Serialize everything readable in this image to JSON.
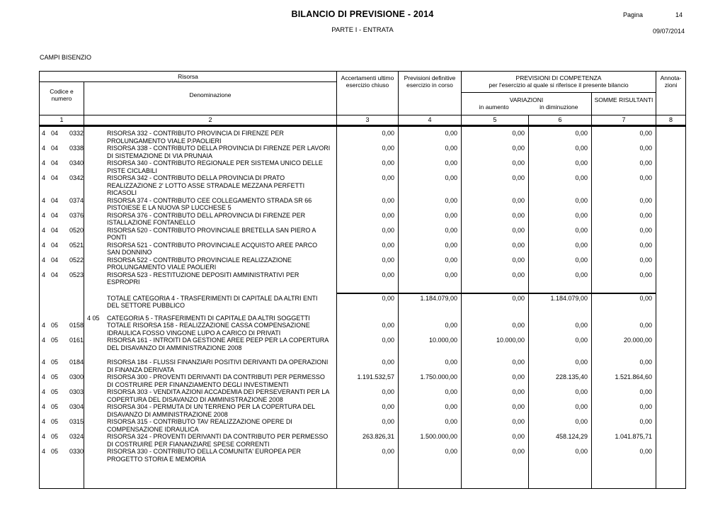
{
  "page": {
    "title": "BILANCIO DI PREVISIONE - 2014",
    "subtitle": "PARTE I - ENTRATA",
    "page_label": "Pagina",
    "page_number": "14",
    "date": "09/07/2014",
    "entity": "CAMPI BISENZIO"
  },
  "colors": {
    "text": "#000000",
    "border": "#000000",
    "background": "#ffffff"
  },
  "table": {
    "header": {
      "risorsa": "Risorsa",
      "codice": "Codice e numero",
      "denominazione": "Denominazione",
      "accertamenti": "Accertamenti ultimo esercizio chiuso",
      "previsioni": "Previsioni definitive esercizio in corso",
      "competenza_title": "PREVISIONI DI COMPETENZA",
      "competenza_sub": "per l'esercizio al quale si riferisce il presente bilancio",
      "variazioni": "VARIAZIONI",
      "in_aumento": "in aumento",
      "in_diminuzione": "in diminuzione",
      "somme": "SOMME RISULTANTI",
      "annotazioni": "Annota-zioni",
      "col_numbers": [
        "1",
        "2",
        "3",
        "4",
        "5",
        "6",
        "7",
        "8"
      ]
    },
    "rows": [
      {
        "type": "item",
        "c1": "4",
        "c2": "04",
        "c3": "0332",
        "den": "RISORSA 332 - CONTRIBUTO PROVINCIA DI FIRENZE PER PROLUNGAMENTO VIALE P.PAOLIERI",
        "v": [
          "0,00",
          "0,00",
          "0,00",
          "0,00",
          "0,00"
        ],
        "ann": ""
      },
      {
        "type": "item",
        "c1": "4",
        "c2": "04",
        "c3": "0338",
        "den": "RISORSA 338 - CONTRIBUTO DELLA PROVINCIA DI FIRENZE PER LAVORI DI SISTEMAZIONE DI VIA PRUNAIA",
        "v": [
          "0,00",
          "0,00",
          "0,00",
          "0,00",
          "0,00"
        ],
        "ann": ""
      },
      {
        "type": "item",
        "c1": "4",
        "c2": "04",
        "c3": "0340",
        "den": "RISORSA 340 - CONTRIBUTO REGIONALE PER SISTEMA UNICO DELLE PISTE CICLABILI",
        "v": [
          "0,00",
          "0,00",
          "0,00",
          "0,00",
          "0,00"
        ],
        "ann": ""
      },
      {
        "type": "item",
        "c1": "4",
        "c2": "04",
        "c3": "0342",
        "den": "RISORSA 342 - CONTRIBUTO DELLA PROVINCIA DI PRATO REALIZZAZIONE 2' LOTTO ASSE STRADALE MEZZANA PERFETTI RICASOLI",
        "v": [
          "0,00",
          "0,00",
          "0,00",
          "0,00",
          "0,00"
        ],
        "ann": ""
      },
      {
        "type": "item",
        "c1": "4",
        "c2": "04",
        "c3": "0374",
        "den": "RISORSA 374 - CONTRIBUTO CEE COLLEGAMENTO STRADA SR 66 PISTOIESE E LA NUOVA SP LUCCHESE 5",
        "v": [
          "0,00",
          "0,00",
          "0,00",
          "0,00",
          "0,00"
        ],
        "ann": ""
      },
      {
        "type": "item",
        "c1": "4",
        "c2": "04",
        "c3": "0376",
        "den": "RISORSA 376 - CONTRIBUTO DELL APROVINCIA DI FIRENZE PER ISTALLAZIONE FONTANELLO",
        "v": [
          "0,00",
          "0,00",
          "0,00",
          "0,00",
          "0,00"
        ],
        "ann": ""
      },
      {
        "type": "item",
        "c1": "4",
        "c2": "04",
        "c3": "0520",
        "den": "RISORSA 520 - CONTRIBUTO PROVINCIALE BRETELLA SAN PIERO A PONTI",
        "v": [
          "0,00",
          "0,00",
          "0,00",
          "0,00",
          "0,00"
        ],
        "ann": ""
      },
      {
        "type": "item",
        "c1": "4",
        "c2": "04",
        "c3": "0521",
        "den": "RISORSA 521 - CONTRIBUTO PROVINCIALE ACQUISTO AREE PARCO SAN DONNINO",
        "v": [
          "0,00",
          "0,00",
          "0,00",
          "0,00",
          "0,00"
        ],
        "ann": ""
      },
      {
        "type": "item",
        "c1": "4",
        "c2": "04",
        "c3": "0522",
        "den": "RISORSA 522 - CONTRIBUTO PROVINCIALE REALIZZAZIONE PROLUNGAMENTO VIALE PAOLIERI",
        "v": [
          "0,00",
          "0,00",
          "0,00",
          "0,00",
          "0,00"
        ],
        "ann": ""
      },
      {
        "type": "item",
        "c1": "4",
        "c2": "04",
        "c3": "0523",
        "den": "RISORSA 523 - RESTITUZIONE DEPOSITI AMMINISTRATIVI PER ESPROPRI",
        "v": [
          "0,00",
          "0,00",
          "0,00",
          "0,00",
          "0,00"
        ],
        "ann": ""
      },
      {
        "type": "total",
        "den": "TOTALE CATEGORIA 4 - TRASFERIMENTI DI CAPITALE DA ALTRI ENTI DEL SETTORE PUBBLICO",
        "v": [
          "0,00",
          "1.184.079,00",
          "0,00",
          "1.184.079,00",
          "0,00"
        ],
        "ann": ""
      },
      {
        "type": "category",
        "cat": "4  05",
        "den": "CATEGORIA 5 - TRASFERIMENTI DI CAPITALE DA ALTRI SOGGETTI",
        "v": [
          "",
          "",
          "",
          "",
          ""
        ],
        "ann": ""
      },
      {
        "type": "item",
        "c1": "4",
        "c2": "05",
        "c3": "0158",
        "den": "TOTALE RISORSA 158 - REALIZZAZIONE CASSA COMPENSAZIONE IDRAULICA FOSSO VINGONE LUPO A CARICO DI PRIVATI",
        "v": [
          "0,00",
          "0,00",
          "0,00",
          "0,00",
          "0,00"
        ],
        "ann": ""
      },
      {
        "type": "item",
        "c1": "4",
        "c2": "05",
        "c3": "0161",
        "den": "RISORSA 161 - INTROITI DA GESTIONE AREE PEEP PER LA COPERTURA DEL DISAVANZO DI AMMINISTRAZIONE 2008",
        "v": [
          "0,00",
          "10.000,00",
          "10.000,00",
          "0,00",
          "20.000,00"
        ],
        "ann": ""
      },
      {
        "type": "spacer",
        "h": 10
      },
      {
        "type": "item",
        "c1": "4",
        "c2": "05",
        "c3": "0184",
        "den": "RISORSA 184 - FLUSSI FINANZIARI POSITIVI DERIVANTI DA OPERAZIONI DI FINANZA DERIVATA",
        "v": [
          "0,00",
          "0,00",
          "0,00",
          "0,00",
          "0,00"
        ],
        "ann": ""
      },
      {
        "type": "item",
        "c1": "4",
        "c2": "05",
        "c3": "0300",
        "den": "RISORSA 300 - PROVENTI DERIVANTI DA CONTRIBUTI PER PERMESSO DI COSTRUIRE PER FINANZIAMENTO DEGLI INVESTIMENTI",
        "v": [
          "1.191.532,57",
          "1.750.000,00",
          "0,00",
          "228.135,40",
          "1.521.864,60"
        ],
        "ann": ""
      },
      {
        "type": "item",
        "c1": "4",
        "c2": "05",
        "c3": "0303",
        "den": "RISORSA 303 - VENDITA AZIONI ACCADEMIA DEI PERSEVERANTI PER LA COPERTURA DEL DISAVANZO DI AMMINISTRAZIONE 2008",
        "v": [
          "0,00",
          "0,00",
          "0,00",
          "0,00",
          "0,00"
        ],
        "ann": ""
      },
      {
        "type": "item",
        "c1": "4",
        "c2": "05",
        "c3": "0304",
        "den": "RISORSA 304 - PERMUTA DI UN TERRENO PER LA COPERTURA DEL DISAVANZO DI AMMINISTRAZIONE 2008",
        "v": [
          "0,00",
          "0,00",
          "0,00",
          "0,00",
          "0,00"
        ],
        "ann": ""
      },
      {
        "type": "item",
        "c1": "4",
        "c2": "05",
        "c3": "0315",
        "den": "RISORSA 315 - CONTRIBUTO TAV REALIZZAZIONE OPERE DI COMPENSAZIONE IDRAULICA",
        "v": [
          "0,00",
          "0,00",
          "0,00",
          "0,00",
          "0,00"
        ],
        "ann": ""
      },
      {
        "type": "item",
        "c1": "4",
        "c2": "05",
        "c3": "0324",
        "den": "RISORSA 324 - PROVENTI DERIVANTI DA CONTRIBUTO PER PERMESSO DI COSTRUIRE PER FIANANZIARE SPESE CORRENTI",
        "v": [
          "263.826,31",
          "1.500.000,00",
          "0,00",
          "458.124,29",
          "1.041.875,71"
        ],
        "ann": ""
      },
      {
        "type": "item",
        "c1": "4",
        "c2": "05",
        "c3": "0330",
        "den": "RISORSA 330 - CONTRIBUTO DELLA COMUNITA' EUROPEA PER PROGETTO STORIA E MEMORIA",
        "v": [
          "0,00",
          "0,00",
          "0,00",
          "0,00",
          "0,00"
        ],
        "ann": ""
      }
    ]
  }
}
